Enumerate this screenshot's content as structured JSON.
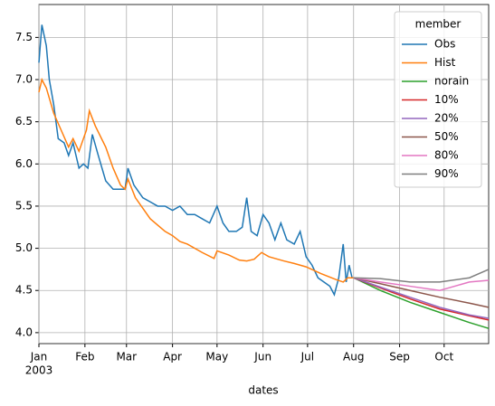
{
  "chart_data": {
    "type": "line",
    "x_label": "dates",
    "year_label": "2003",
    "legend_title": "member",
    "legend_position": "upper right",
    "grid": true,
    "xlim": [
      0,
      303
    ],
    "ylim": [
      3.87,
      7.89
    ],
    "xticks": [
      {
        "value": 0,
        "label": "Jan"
      },
      {
        "value": 31,
        "label": "Feb"
      },
      {
        "value": 59,
        "label": "Mar"
      },
      {
        "value": 90,
        "label": "Apr"
      },
      {
        "value": 120,
        "label": "May"
      },
      {
        "value": 151,
        "label": "Jun"
      },
      {
        "value": 181,
        "label": "Jul"
      },
      {
        "value": 212,
        "label": "Aug"
      },
      {
        "value": 243,
        "label": "Sep"
      },
      {
        "value": 273,
        "label": "Oct"
      }
    ],
    "yticks": [
      {
        "value": 4,
        "label": "4.0"
      },
      4.5,
      {
        "value": 5,
        "label": "5.0"
      },
      5.5,
      {
        "value": 6,
        "label": "6.0"
      },
      6.5,
      {
        "value": 7,
        "label": "7.0"
      },
      7.5
    ],
    "series": [
      {
        "name": "Obs",
        "color": "#1f77b4",
        "x": [
          0,
          2,
          5,
          7,
          10,
          13,
          17,
          20,
          23,
          27,
          30,
          33,
          36,
          40,
          45,
          50,
          55,
          58,
          60,
          64,
          70,
          75,
          80,
          85,
          90,
          95,
          100,
          105,
          110,
          115,
          120,
          124,
          128,
          133,
          137,
          140,
          143,
          147,
          151,
          155,
          159,
          163,
          167,
          172,
          176,
          180,
          184,
          188,
          192,
          196,
          199,
          202,
          205,
          207,
          209,
          211
        ],
        "values": [
          7.2,
          7.65,
          7.4,
          7.0,
          6.7,
          6.3,
          6.25,
          6.1,
          6.25,
          5.95,
          6.0,
          5.95,
          6.35,
          6.1,
          5.8,
          5.7,
          5.7,
          5.7,
          5.95,
          5.75,
          5.6,
          5.55,
          5.5,
          5.5,
          5.45,
          5.5,
          5.4,
          5.4,
          5.35,
          5.3,
          5.5,
          5.3,
          5.2,
          5.2,
          5.25,
          5.6,
          5.2,
          5.15,
          5.4,
          5.3,
          5.1,
          5.3,
          5.1,
          5.05,
          5.2,
          4.9,
          4.8,
          4.65,
          4.6,
          4.55,
          4.45,
          4.65,
          5.05,
          4.6,
          4.8,
          4.65
        ]
      },
      {
        "name": "Hist",
        "color": "#ff7f0e",
        "x": [
          0,
          2,
          5,
          10,
          15,
          20,
          23,
          27,
          32,
          34,
          38,
          45,
          50,
          55,
          58,
          60,
          65,
          75,
          85,
          90,
          95,
          100,
          110,
          118,
          120,
          128,
          135,
          140,
          145,
          150,
          155,
          165,
          172,
          180,
          190,
          200,
          205,
          208,
          212
        ],
        "values": [
          6.85,
          7.0,
          6.9,
          6.6,
          6.4,
          6.2,
          6.3,
          6.15,
          6.4,
          6.63,
          6.45,
          6.2,
          5.95,
          5.75,
          5.7,
          5.82,
          5.6,
          5.35,
          5.2,
          5.15,
          5.08,
          5.05,
          4.95,
          4.88,
          4.97,
          4.92,
          4.86,
          4.85,
          4.87,
          4.95,
          4.9,
          4.85,
          4.82,
          4.78,
          4.7,
          4.63,
          4.6,
          4.65,
          4.65
        ]
      },
      {
        "name": "norain",
        "color": "#2ca02c",
        "x": [
          212,
          230,
          250,
          270,
          290,
          303
        ],
        "values": [
          4.65,
          4.5,
          4.36,
          4.24,
          4.12,
          4.05
        ]
      },
      {
        "name": "10%",
        "color": "#d62728",
        "x": [
          212,
          230,
          250,
          270,
          290,
          303
        ],
        "values": [
          4.65,
          4.53,
          4.4,
          4.28,
          4.2,
          4.15
        ]
      },
      {
        "name": "20%",
        "color": "#9467bd",
        "x": [
          212,
          230,
          250,
          270,
          290,
          303
        ],
        "values": [
          4.65,
          4.54,
          4.42,
          4.3,
          4.21,
          4.17
        ]
      },
      {
        "name": "50%",
        "color": "#8c564b",
        "x": [
          212,
          230,
          250,
          270,
          290,
          303
        ],
        "values": [
          4.65,
          4.58,
          4.5,
          4.42,
          4.35,
          4.3
        ]
      },
      {
        "name": "80%",
        "color": "#e377c2",
        "x": [
          212,
          230,
          250,
          270,
          280,
          290,
          303
        ],
        "values": [
          4.65,
          4.6,
          4.55,
          4.5,
          4.55,
          4.6,
          4.62
        ]
      },
      {
        "name": "90%",
        "color": "#7f7f7f",
        "x": [
          212,
          230,
          250,
          270,
          290,
          303
        ],
        "values": [
          4.65,
          4.64,
          4.6,
          4.6,
          4.65,
          4.75
        ]
      }
    ]
  }
}
